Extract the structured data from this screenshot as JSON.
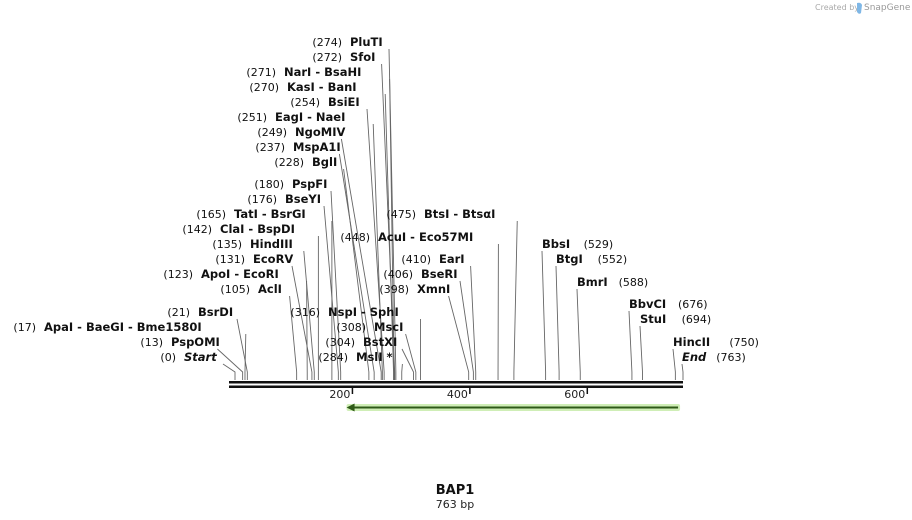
{
  "credit": {
    "prefix": "Created by",
    "brand": "SnapGene"
  },
  "sequence": {
    "name": "BAP1",
    "length_label": "763 bp",
    "length": 763
  },
  "axis": {
    "ticks": [
      200,
      400,
      600
    ]
  },
  "feature": {
    "name": "",
    "start": 190,
    "end": 758,
    "direction": "reverse",
    "color": "#a8e07a"
  },
  "labels": [
    {
      "pos": 274,
      "pos_label": "(274)",
      "names": [
        "PluTI"
      ]
    },
    {
      "pos": 272,
      "pos_label": "(272)",
      "names": [
        "SfoI"
      ]
    },
    {
      "pos": 271,
      "pos_label": "(271)",
      "names": [
        "NarI",
        "BsaHI"
      ]
    },
    {
      "pos": 270,
      "pos_label": "(270)",
      "names": [
        "KasI",
        "BanI"
      ]
    },
    {
      "pos": 254,
      "pos_label": "(254)",
      "names": [
        "BsiEI"
      ]
    },
    {
      "pos": 251,
      "pos_label": "(251)",
      "names": [
        "EagI",
        "NaeI"
      ]
    },
    {
      "pos": 249,
      "pos_label": "(249)",
      "names": [
        "NgoMIV"
      ]
    },
    {
      "pos": 237,
      "pos_label": "(237)",
      "names": [
        "MspA1I"
      ]
    },
    {
      "pos": 228,
      "pos_label": "(228)",
      "names": [
        "BglI"
      ]
    },
    {
      "pos": 180,
      "pos_label": "(180)",
      "names": [
        "PspFI"
      ]
    },
    {
      "pos": 176,
      "pos_label": "(176)",
      "names": [
        "BseYI"
      ]
    },
    {
      "pos": 165,
      "pos_label": "(165)",
      "names": [
        "TatI",
        "BsrGI"
      ]
    },
    {
      "pos": 142,
      "pos_label": "(142)",
      "names": [
        "ClaI",
        "BspDI"
      ]
    },
    {
      "pos": 135,
      "pos_label": "(135)",
      "names": [
        "HindIII"
      ]
    },
    {
      "pos": 131,
      "pos_label": "(131)",
      "names": [
        "EcoRV"
      ]
    },
    {
      "pos": 123,
      "pos_label": "(123)",
      "names": [
        "ApoI",
        "EcoRI"
      ]
    },
    {
      "pos": 105,
      "pos_label": "(105)",
      "names": [
        "AclI"
      ]
    },
    {
      "pos": 21,
      "pos_label": "(21)",
      "names": [
        "BsrDI"
      ]
    },
    {
      "pos": 17,
      "pos_label": "(17)",
      "names": [
        "ApaI",
        "BaeGI",
        "Bme1580I"
      ]
    },
    {
      "pos": 13,
      "pos_label": "(13)",
      "names": [
        "PspOMI"
      ]
    },
    {
      "pos": 0,
      "pos_label": "(0)",
      "names": [
        "Start"
      ],
      "italic": true
    },
    {
      "pos": 475,
      "pos_label": "(475)",
      "names": [
        "BtsI",
        "BtsαI"
      ]
    },
    {
      "pos": 448,
      "pos_label": "(448)",
      "names": [
        "AcuI",
        "Eco57MI"
      ]
    },
    {
      "pos": 410,
      "pos_label": "(410)",
      "names": [
        "EarI"
      ]
    },
    {
      "pos": 406,
      "pos_label": "(406)",
      "names": [
        "BseRI"
      ]
    },
    {
      "pos": 398,
      "pos_label": "(398)",
      "names": [
        "XmnI"
      ]
    },
    {
      "pos": 316,
      "pos_label": "(316)",
      "names": [
        "NspI",
        "SphI"
      ]
    },
    {
      "pos": 308,
      "pos_label": "(308)",
      "names": [
        "MscI"
      ]
    },
    {
      "pos": 304,
      "pos_label": "(304)",
      "names": [
        "BstXI"
      ]
    },
    {
      "pos": 284,
      "pos_label": "(284)",
      "names": [
        "MslI"
      ],
      "star": "*"
    },
    {
      "pos": 529,
      "pos_label": "(529)",
      "names": [
        "BbsI"
      ]
    },
    {
      "pos": 552,
      "pos_label": "(552)",
      "names": [
        "BtgI"
      ]
    },
    {
      "pos": 588,
      "pos_label": "(588)",
      "names": [
        "BmrI"
      ]
    },
    {
      "pos": 676,
      "pos_label": "(676)",
      "names": [
        "BbvCI"
      ]
    },
    {
      "pos": 694,
      "pos_label": "(694)",
      "names": [
        "StuI"
      ]
    },
    {
      "pos": 750,
      "pos_label": "(750)",
      "names": [
        "HincII"
      ]
    },
    {
      "pos": 763,
      "pos_label": "(763)",
      "names": [
        "End"
      ],
      "italic": true
    }
  ]
}
